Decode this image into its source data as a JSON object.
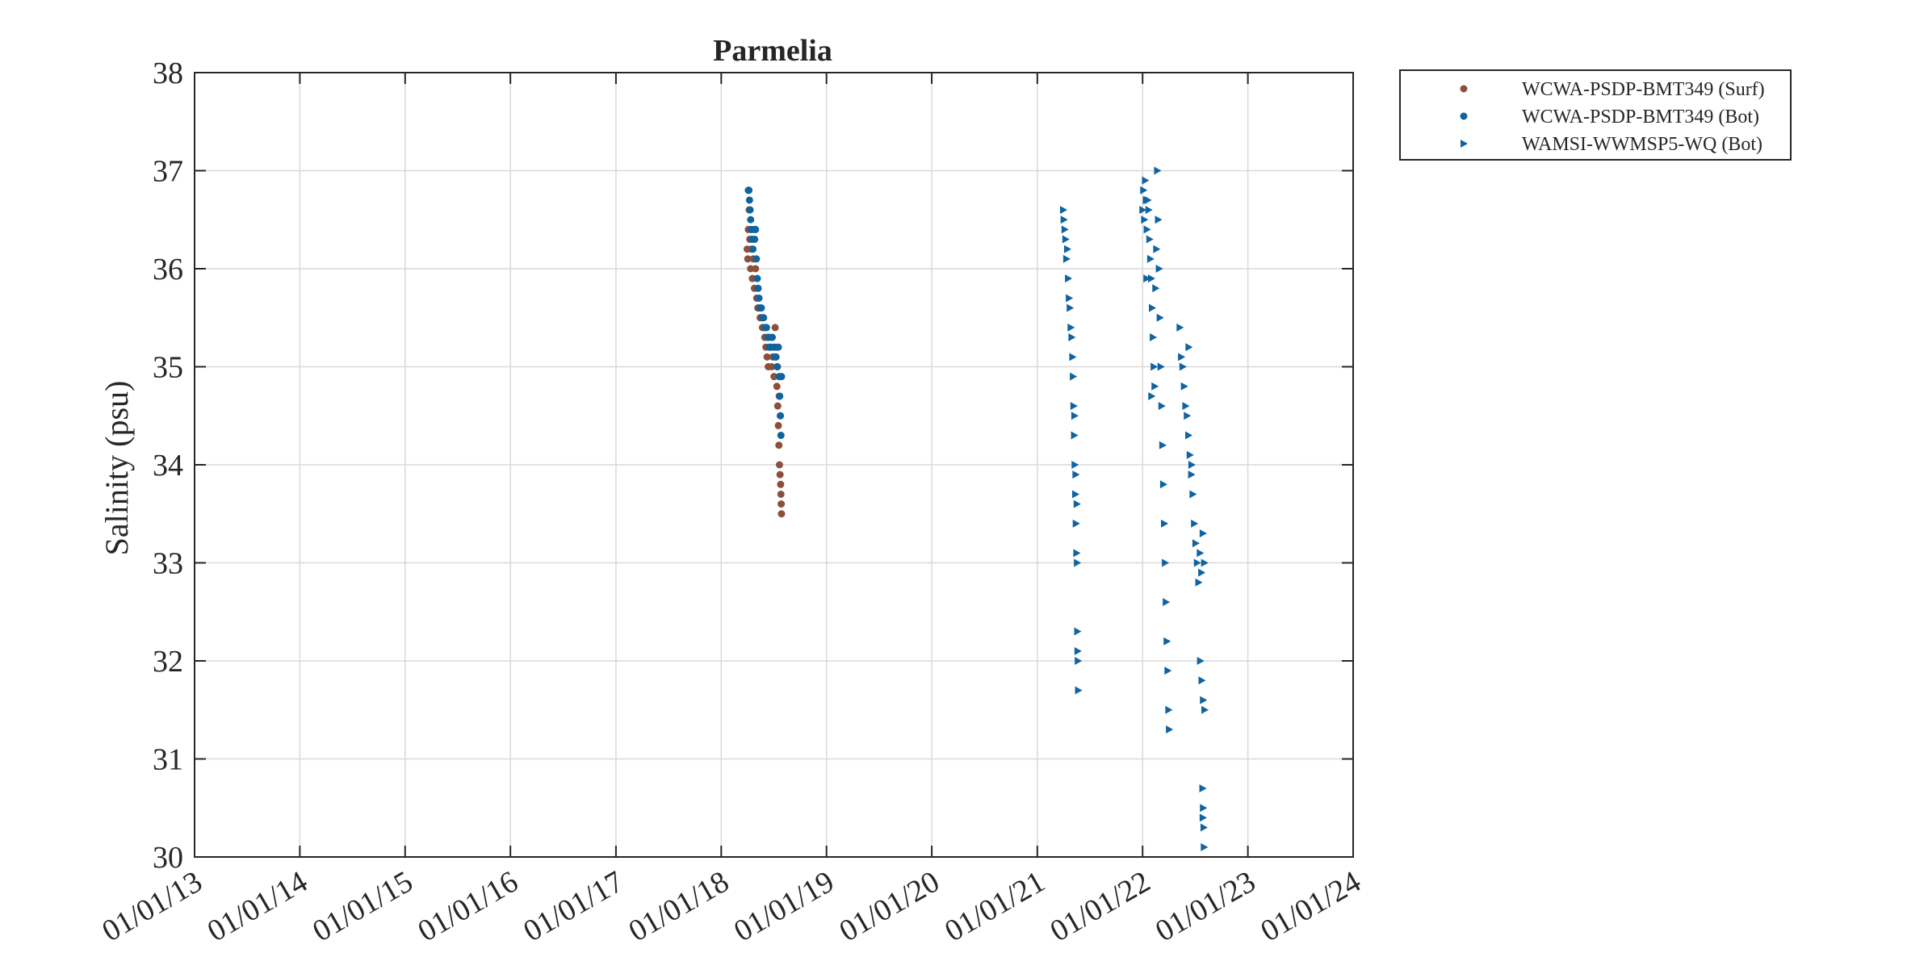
{
  "chart_data": {
    "type": "scatter",
    "title": "Parmelia",
    "xlabel": "",
    "ylabel": "Salinity (psu)",
    "x_type": "date",
    "xlim": [
      "2013-01-01",
      "2024-01-01"
    ],
    "ylim": [
      30,
      38
    ],
    "grid": true,
    "legend_position": "outside top-right",
    "x_ticks": [
      "2013-01-01",
      "2014-01-01",
      "2015-01-01",
      "2016-01-01",
      "2017-01-01",
      "2018-01-01",
      "2019-01-01",
      "2020-01-01",
      "2021-01-01",
      "2022-01-01",
      "2023-01-01",
      "2024-01-01"
    ],
    "x_tick_labels": [
      "01/01/13",
      "01/01/14",
      "01/01/15",
      "01/01/16",
      "01/01/17",
      "01/01/18",
      "01/01/19",
      "01/01/20",
      "01/01/21",
      "01/01/22",
      "01/01/23",
      "01/01/24"
    ],
    "y_ticks": [
      30,
      31,
      32,
      33,
      34,
      35,
      36,
      37,
      38
    ],
    "y_tick_labels": [
      "30",
      "31",
      "32",
      "33",
      "34",
      "35",
      "36",
      "37",
      "38"
    ],
    "series": [
      {
        "name": "WCWA-PSDP-BMT349 (Surf)",
        "color": "#8c4f3c",
        "marker": "circle",
        "points": [
          [
            "2018-04-01",
            36.2
          ],
          [
            "2018-04-03",
            36.1
          ],
          [
            "2018-04-05",
            36.4
          ],
          [
            "2018-04-08",
            36.6
          ],
          [
            "2018-04-10",
            36.3
          ],
          [
            "2018-04-13",
            36.0
          ],
          [
            "2018-04-16",
            36.2
          ],
          [
            "2018-04-19",
            35.9
          ],
          [
            "2018-04-22",
            36.1
          ],
          [
            "2018-04-26",
            35.8
          ],
          [
            "2018-04-30",
            36.0
          ],
          [
            "2018-05-04",
            35.7
          ],
          [
            "2018-05-08",
            35.6
          ],
          [
            "2018-05-12",
            35.6
          ],
          [
            "2018-05-16",
            35.5
          ],
          [
            "2018-05-20",
            35.5
          ],
          [
            "2018-05-24",
            35.4
          ],
          [
            "2018-05-28",
            35.4
          ],
          [
            "2018-06-01",
            35.3
          ],
          [
            "2018-06-05",
            35.2
          ],
          [
            "2018-06-09",
            35.1
          ],
          [
            "2018-06-13",
            35.0
          ],
          [
            "2018-06-17",
            35.3
          ],
          [
            "2018-06-21",
            35.2
          ],
          [
            "2018-06-25",
            35.0
          ],
          [
            "2018-06-29",
            35.1
          ],
          [
            "2018-07-03",
            34.9
          ],
          [
            "2018-07-07",
            35.4
          ],
          [
            "2018-07-10",
            35.2
          ],
          [
            "2018-07-13",
            34.8
          ],
          [
            "2018-07-16",
            34.6
          ],
          [
            "2018-07-18",
            34.4
          ],
          [
            "2018-07-20",
            34.2
          ],
          [
            "2018-07-22",
            34.0
          ],
          [
            "2018-07-24",
            33.9
          ],
          [
            "2018-07-26",
            33.8
          ],
          [
            "2018-07-27",
            33.7
          ],
          [
            "2018-07-28",
            33.6
          ],
          [
            "2018-07-29",
            33.5
          ],
          [
            "2018-07-25",
            34.5
          ],
          [
            "2018-07-21",
            34.7
          ],
          [
            "2018-07-15",
            35.0
          ]
        ]
      },
      {
        "name": "WCWA-PSDP-BMT349 (Bot)",
        "color": "#0f64a0",
        "marker": "circle",
        "points": [
          [
            "2018-04-05",
            36.8
          ],
          [
            "2018-04-07",
            36.8
          ],
          [
            "2018-04-09",
            36.7
          ],
          [
            "2018-04-11",
            36.6
          ],
          [
            "2018-04-13",
            36.5
          ],
          [
            "2018-04-15",
            36.4
          ],
          [
            "2018-04-18",
            36.3
          ],
          [
            "2018-04-21",
            36.2
          ],
          [
            "2018-04-24",
            36.4
          ],
          [
            "2018-04-27",
            36.3
          ],
          [
            "2018-04-30",
            36.4
          ],
          [
            "2018-05-03",
            36.1
          ],
          [
            "2018-05-06",
            35.9
          ],
          [
            "2018-05-09",
            35.8
          ],
          [
            "2018-05-12",
            35.7
          ],
          [
            "2018-05-16",
            35.6
          ],
          [
            "2018-05-20",
            35.6
          ],
          [
            "2018-05-24",
            35.5
          ],
          [
            "2018-05-28",
            35.5
          ],
          [
            "2018-06-02",
            35.4
          ],
          [
            "2018-06-07",
            35.4
          ],
          [
            "2018-06-12",
            35.3
          ],
          [
            "2018-06-17",
            35.2
          ],
          [
            "2018-06-22",
            35.2
          ],
          [
            "2018-06-27",
            35.3
          ],
          [
            "2018-07-02",
            35.2
          ],
          [
            "2018-07-06",
            35.1
          ],
          [
            "2018-07-10",
            35.1
          ],
          [
            "2018-07-14",
            35.0
          ],
          [
            "2018-07-18",
            35.2
          ],
          [
            "2018-07-21",
            34.9
          ],
          [
            "2018-07-23",
            34.7
          ],
          [
            "2018-07-25",
            34.5
          ],
          [
            "2018-07-27",
            34.3
          ],
          [
            "2018-07-29",
            34.9
          ]
        ]
      },
      {
        "name": "WAMSI-WWMSP5-WQ (Bot)",
        "color": "#0f64a0",
        "marker": "triangle-right",
        "points": [
          [
            "2021-04-01",
            36.6
          ],
          [
            "2021-04-03",
            36.5
          ],
          [
            "2021-04-06",
            36.4
          ],
          [
            "2021-04-09",
            36.3
          ],
          [
            "2021-04-12",
            36.1
          ],
          [
            "2021-04-15",
            36.2
          ],
          [
            "2021-04-18",
            35.9
          ],
          [
            "2021-04-21",
            35.7
          ],
          [
            "2021-04-24",
            35.6
          ],
          [
            "2021-04-27",
            35.4
          ],
          [
            "2021-04-30",
            35.3
          ],
          [
            "2021-05-03",
            35.1
          ],
          [
            "2021-05-05",
            34.9
          ],
          [
            "2021-05-07",
            34.6
          ],
          [
            "2021-05-09",
            34.3
          ],
          [
            "2021-05-11",
            34.0
          ],
          [
            "2021-05-13",
            33.7
          ],
          [
            "2021-05-15",
            33.4
          ],
          [
            "2021-05-17",
            33.1
          ],
          [
            "2021-05-19",
            33.0
          ],
          [
            "2021-05-20",
            32.3
          ],
          [
            "2021-05-21",
            32.1
          ],
          [
            "2021-05-22",
            32.0
          ],
          [
            "2021-05-23",
            31.7
          ],
          [
            "2021-05-18",
            33.6
          ],
          [
            "2021-05-10",
            34.5
          ],
          [
            "2021-05-14",
            33.9
          ],
          [
            "2022-01-01",
            36.6
          ],
          [
            "2022-01-04",
            36.8
          ],
          [
            "2022-01-07",
            36.5
          ],
          [
            "2022-01-10",
            36.9
          ],
          [
            "2022-01-13",
            36.7
          ],
          [
            "2022-01-16",
            36.4
          ],
          [
            "2022-01-19",
            36.7
          ],
          [
            "2022-01-22",
            36.6
          ],
          [
            "2022-01-25",
            36.3
          ],
          [
            "2022-01-28",
            36.1
          ],
          [
            "2022-01-31",
            35.9
          ],
          [
            "2022-02-03",
            35.6
          ],
          [
            "2022-02-06",
            35.3
          ],
          [
            "2022-02-09",
            35.0
          ],
          [
            "2022-02-12",
            34.8
          ],
          [
            "2022-02-15",
            35.8
          ],
          [
            "2022-02-18",
            36.2
          ],
          [
            "2022-02-21",
            37.0
          ],
          [
            "2022-02-24",
            36.5
          ],
          [
            "2022-02-27",
            36.0
          ],
          [
            "2022-03-02",
            35.5
          ],
          [
            "2022-03-05",
            35.0
          ],
          [
            "2022-03-08",
            34.6
          ],
          [
            "2022-03-11",
            34.2
          ],
          [
            "2022-03-14",
            33.8
          ],
          [
            "2022-03-17",
            33.4
          ],
          [
            "2022-03-20",
            33.0
          ],
          [
            "2022-03-23",
            32.6
          ],
          [
            "2022-03-26",
            32.2
          ],
          [
            "2022-03-29",
            31.9
          ],
          [
            "2022-04-01",
            31.5
          ],
          [
            "2022-04-03",
            31.3
          ],
          [
            "2022-01-15",
            35.9
          ],
          [
            "2022-02-01",
            34.7
          ],
          [
            "2022-05-10",
            35.4
          ],
          [
            "2022-05-15",
            35.1
          ],
          [
            "2022-05-20",
            35.0
          ],
          [
            "2022-05-25",
            34.8
          ],
          [
            "2022-05-30",
            34.6
          ],
          [
            "2022-06-04",
            34.5
          ],
          [
            "2022-06-09",
            34.3
          ],
          [
            "2022-06-14",
            34.1
          ],
          [
            "2022-06-19",
            33.9
          ],
          [
            "2022-06-24",
            33.7
          ],
          [
            "2022-06-29",
            33.4
          ],
          [
            "2022-07-04",
            33.2
          ],
          [
            "2022-07-09",
            33.0
          ],
          [
            "2022-07-14",
            32.8
          ],
          [
            "2022-07-19",
            33.1
          ],
          [
            "2022-07-24",
            32.9
          ],
          [
            "2022-07-29",
            33.3
          ],
          [
            "2022-08-03",
            33.0
          ],
          [
            "2022-07-20",
            32.0
          ],
          [
            "2022-07-25",
            31.8
          ],
          [
            "2022-07-30",
            31.6
          ],
          [
            "2022-08-04",
            31.5
          ],
          [
            "2022-07-28",
            30.7
          ],
          [
            "2022-07-30",
            30.5
          ],
          [
            "2022-08-01",
            30.3
          ],
          [
            "2022-08-02",
            30.1
          ],
          [
            "2022-07-29",
            30.4
          ],
          [
            "2022-06-10",
            35.2
          ],
          [
            "2022-06-20",
            34.0
          ]
        ]
      }
    ]
  }
}
